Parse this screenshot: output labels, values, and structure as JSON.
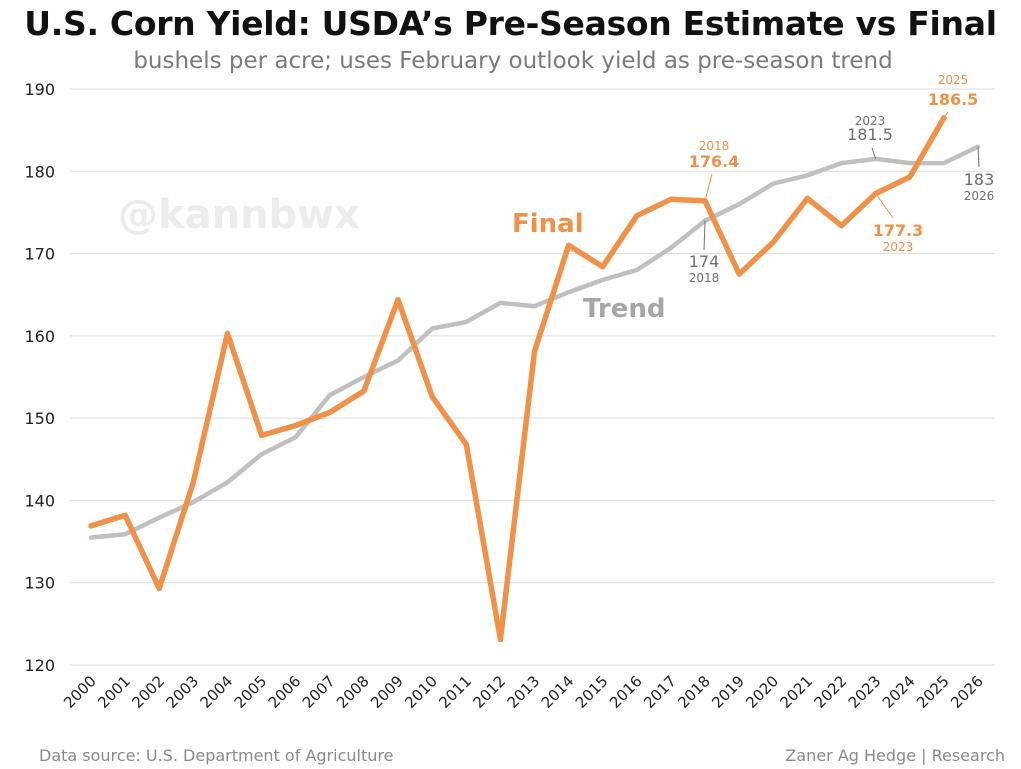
{
  "header": {
    "title": "U.S. Corn Yield: USDA’s Pre-Season Estimate vs Final",
    "subtitle": "bushels per acre; uses February outlook yield as pre-season trend"
  },
  "footer": {
    "source": "Data source: U.S. Department of Agriculture",
    "credit": "Zaner Ag Hedge | Research"
  },
  "watermark": "@kannbwx",
  "colors": {
    "final": "#f0914a",
    "trend": "#c0c0c0",
    "trend_label": "#a6a6a6",
    "grid": "#dcdcdc",
    "watermark": "#ececec",
    "annotation_gray": "#6f6f6f"
  },
  "chart_data": {
    "type": "line",
    "title": "U.S. Corn Yield: USDA’s Pre-Season Estimate vs Final",
    "subtitle": "bushels per acre; uses February outlook yield as pre-season trend",
    "x": [
      "2000",
      "2001",
      "2002",
      "2003",
      "2004",
      "2005",
      "2006",
      "2007",
      "2008",
      "2009",
      "2010",
      "2011",
      "2012",
      "2013",
      "2014",
      "2015",
      "2016",
      "2017",
      "2018",
      "2019",
      "2020",
      "2021",
      "2022",
      "2023",
      "2024",
      "2025",
      "2026"
    ],
    "ylim": [
      120,
      190
    ],
    "yticks": [
      120,
      130,
      140,
      150,
      160,
      170,
      180,
      190
    ],
    "grid": "horizontal",
    "series": [
      {
        "name": "Final",
        "color": "#f0914a",
        "values": [
          136.9,
          138.2,
          129.3,
          142.2,
          160.3,
          147.9,
          149.1,
          150.7,
          153.3,
          164.4,
          152.6,
          146.8,
          123.1,
          158.1,
          171.0,
          168.4,
          174.6,
          176.6,
          176.4,
          167.5,
          171.4,
          176.7,
          173.4,
          177.3,
          179.3,
          186.5,
          null
        ]
      },
      {
        "name": "Trend",
        "color": "#c0c0c0",
        "values": [
          135.5,
          135.9,
          137.9,
          139.8,
          142.2,
          145.6,
          147.7,
          152.8,
          155.0,
          157.0,
          160.9,
          161.7,
          164.0,
          163.6,
          165.3,
          166.8,
          168.0,
          170.7,
          174.0,
          176.0,
          178.5,
          179.5,
          181.0,
          181.5,
          181.0,
          181.0,
          183.0
        ]
      }
    ],
    "annotations": [
      {
        "series": "Final",
        "year": "2018",
        "value": "176.4"
      },
      {
        "series": "Trend",
        "year": "2018",
        "value": "174"
      },
      {
        "series": "Final",
        "year": "2023",
        "value": "177.3"
      },
      {
        "series": "Trend",
        "year": "2023",
        "value": "181.5"
      },
      {
        "series": "Final",
        "year": "2025",
        "value": "186.5"
      },
      {
        "series": "Trend",
        "year": "2026",
        "value": "183"
      }
    ]
  }
}
